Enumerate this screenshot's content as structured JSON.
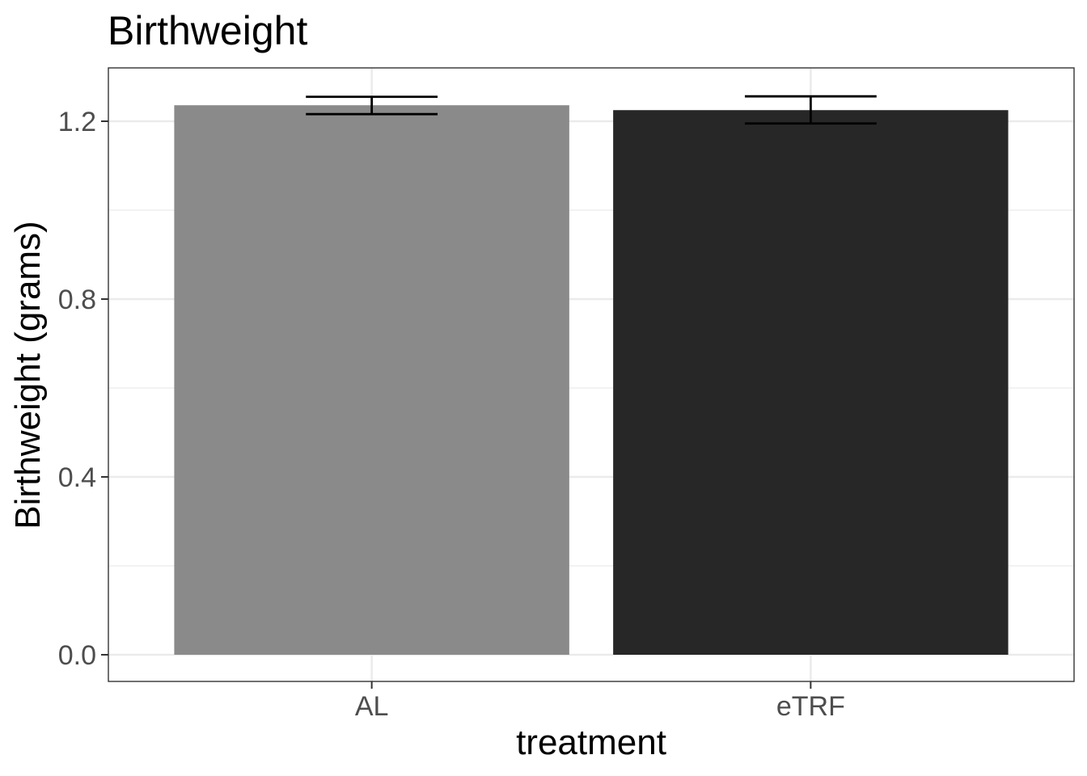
{
  "chart_data": {
    "type": "bar",
    "title": "Birthweight",
    "xlabel": "treatment",
    "ylabel": "Birthweight (grams)",
    "categories": [
      "AL",
      "eTRF"
    ],
    "values": [
      1.236,
      1.225
    ],
    "error_low": [
      1.216,
      1.195
    ],
    "error_high": [
      1.255,
      1.256
    ],
    "ylim": [
      -0.06,
      1.32
    ],
    "yticks": [
      0.0,
      0.4,
      0.8,
      1.2
    ],
    "ytick_labels": [
      "0.0",
      "0.4",
      "0.8",
      "1.2"
    ],
    "bar_colors": [
      "#8a8a8a",
      "#272727"
    ],
    "grid": true,
    "legend": "none"
  }
}
